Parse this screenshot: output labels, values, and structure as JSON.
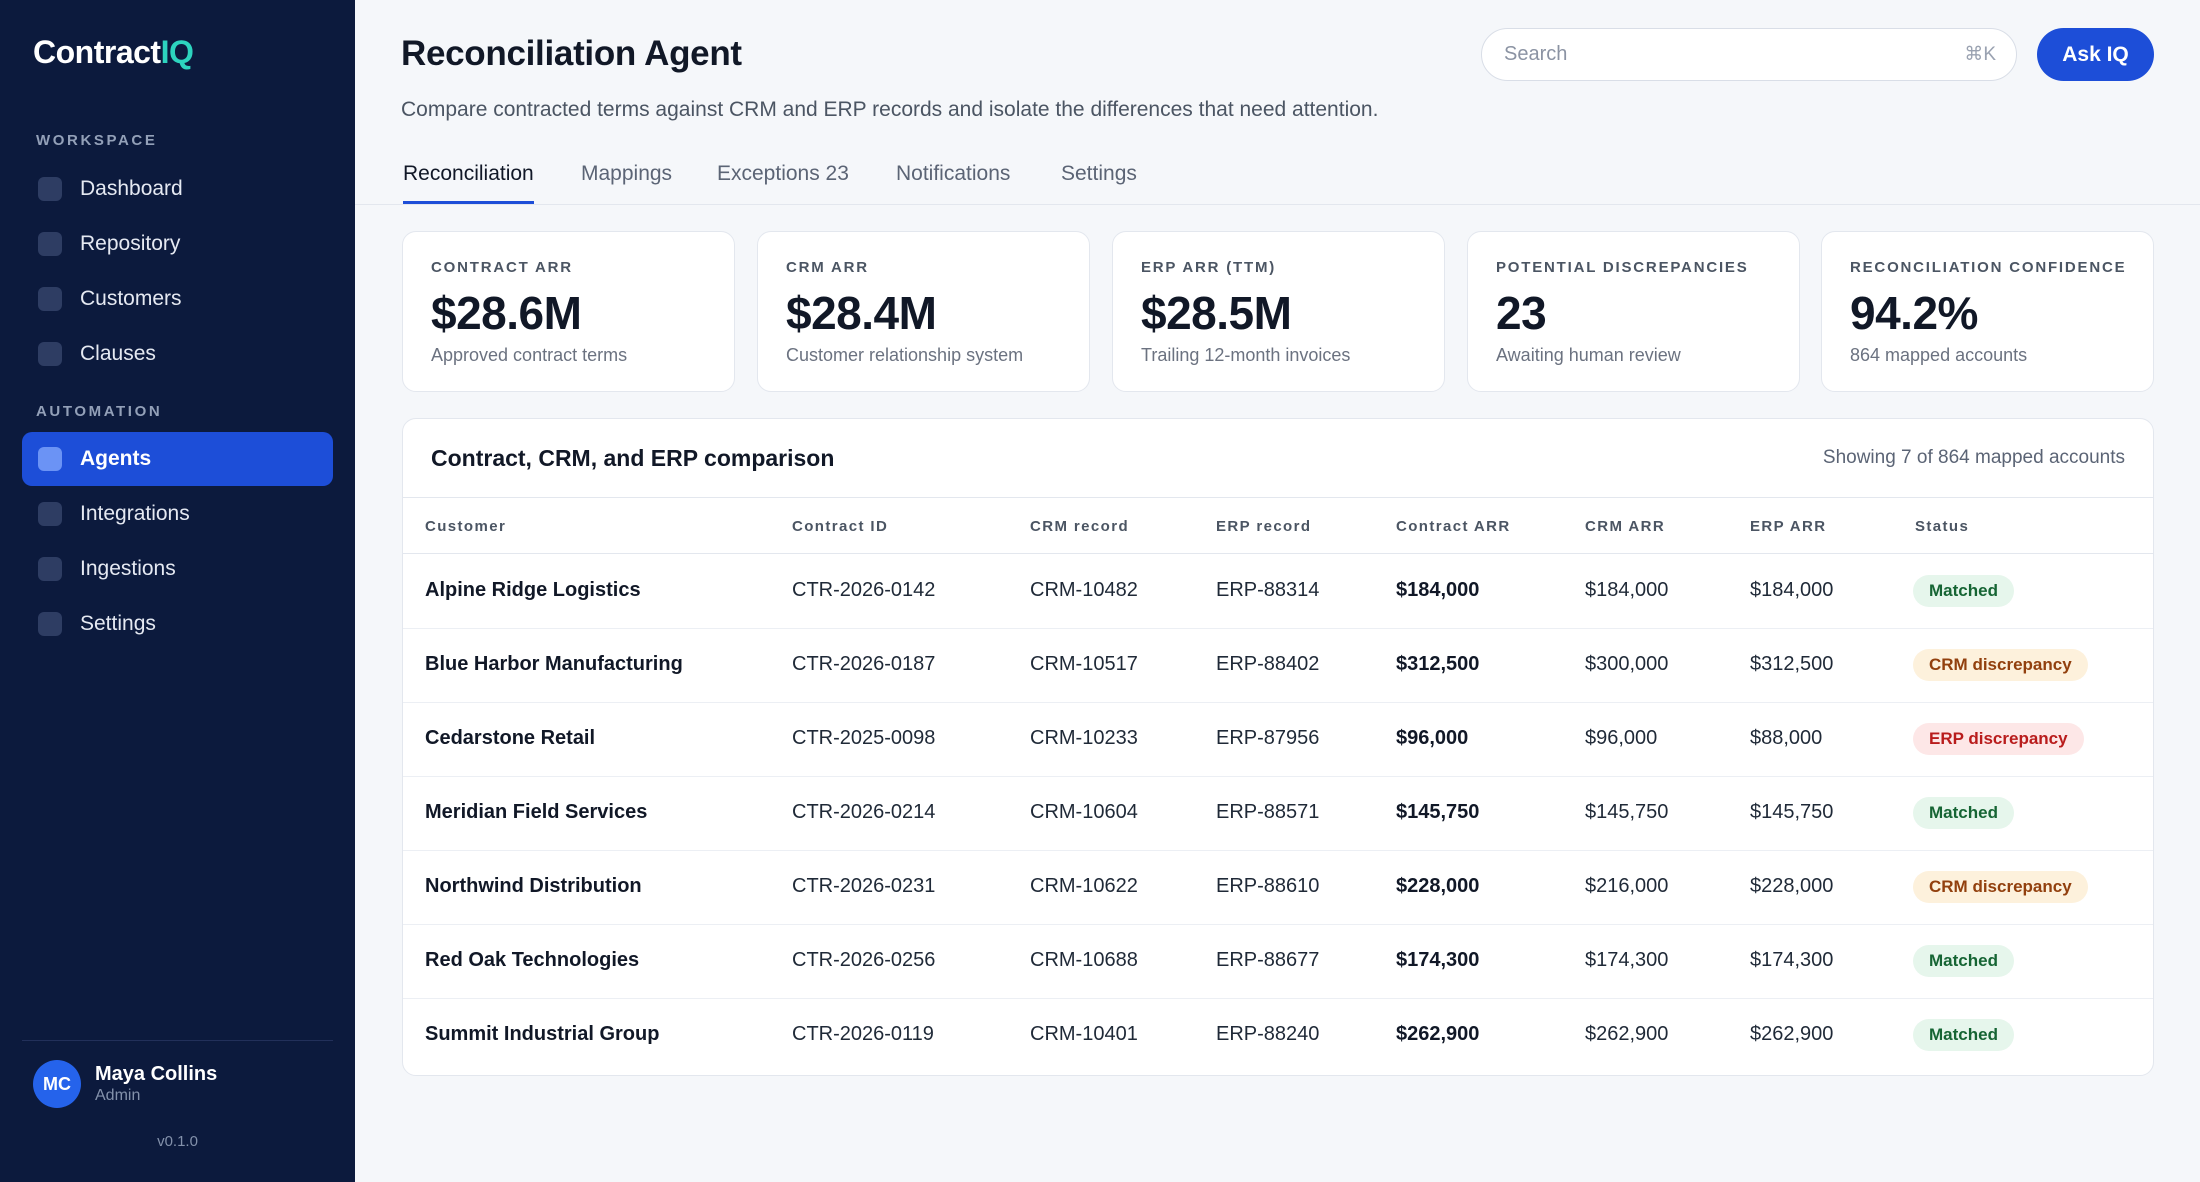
{
  "brand": {
    "name": "Contract",
    "accent": "IQ"
  },
  "sidebar": {
    "sections": [
      {
        "label": "WORKSPACE",
        "items": [
          "Dashboard",
          "Repository",
          "Customers",
          "Clauses"
        ]
      },
      {
        "label": "AUTOMATION",
        "items": [
          "Agents",
          "Integrations",
          "Ingestions",
          "Settings"
        ]
      }
    ],
    "active_item": "Agents",
    "user": {
      "initials": "MC",
      "name": "Maya Collins",
      "role": "Admin"
    },
    "version": "v0.1.0"
  },
  "header": {
    "title": "Reconciliation Agent",
    "subtitle": "Compare contracted terms against CRM and ERP records and isolate the differences that need attention.",
    "search_placeholder": "Search",
    "search_shortcut": "⌘K",
    "ask_button": "Ask IQ"
  },
  "tabs": [
    {
      "label": "Reconciliation",
      "active": true
    },
    {
      "label": "Mappings",
      "active": false
    },
    {
      "label": "Exceptions 23",
      "active": false
    },
    {
      "label": "Notifications",
      "active": false
    },
    {
      "label": "Settings",
      "active": false
    }
  ],
  "kpis": [
    {
      "label": "CONTRACT ARR",
      "value": "$28.6M",
      "sub": "Approved contract terms"
    },
    {
      "label": "CRM ARR",
      "value": "$28.4M",
      "sub": "Customer relationship system"
    },
    {
      "label": "ERP ARR (TTM)",
      "value": "$28.5M",
      "sub": "Trailing 12-month invoices"
    },
    {
      "label": "POTENTIAL DISCREPANCIES",
      "value": "23",
      "sub": "Awaiting human review"
    },
    {
      "label": "RECONCILIATION CONFIDENCE",
      "value": "94.2%",
      "sub": "864 mapped accounts"
    }
  ],
  "table": {
    "title": "Contract, CRM, and ERP comparison",
    "count": "Showing 7 of 864 mapped accounts",
    "columns": [
      "Customer",
      "Contract ID",
      "CRM record",
      "ERP record",
      "Contract ARR",
      "CRM ARR",
      "ERP ARR",
      "Status"
    ],
    "rows": [
      {
        "customer": "Alpine Ridge Logistics",
        "contract_id": "CTR-2026-0142",
        "crm": "CRM-10482",
        "erp": "ERP-88314",
        "contract_arr": "$184,000",
        "crm_arr": "$184,000",
        "erp_arr": "$184,000",
        "status": "Matched",
        "status_type": "matched"
      },
      {
        "customer": "Blue Harbor Manufacturing",
        "contract_id": "CTR-2026-0187",
        "crm": "CRM-10517",
        "erp": "ERP-88402",
        "contract_arr": "$312,500",
        "crm_arr": "$300,000",
        "erp_arr": "$312,500",
        "status": "CRM discrepancy",
        "status_type": "crm"
      },
      {
        "customer": "Cedarstone Retail",
        "contract_id": "CTR-2025-0098",
        "crm": "CRM-10233",
        "erp": "ERP-87956",
        "contract_arr": "$96,000",
        "crm_arr": "$96,000",
        "erp_arr": "$88,000",
        "status": "ERP discrepancy",
        "status_type": "erp"
      },
      {
        "customer": "Meridian Field Services",
        "contract_id": "CTR-2026-0214",
        "crm": "CRM-10604",
        "erp": "ERP-88571",
        "contract_arr": "$145,750",
        "crm_arr": "$145,750",
        "erp_arr": "$145,750",
        "status": "Matched",
        "status_type": "matched"
      },
      {
        "customer": "Northwind Distribution",
        "contract_id": "CTR-2026-0231",
        "crm": "CRM-10622",
        "erp": "ERP-88610",
        "contract_arr": "$228,000",
        "crm_arr": "$216,000",
        "erp_arr": "$228,000",
        "status": "CRM discrepancy",
        "status_type": "crm"
      },
      {
        "customer": "Red Oak Technologies",
        "contract_id": "CTR-2026-0256",
        "crm": "CRM-10688",
        "erp": "ERP-88677",
        "contract_arr": "$174,300",
        "crm_arr": "$174,300",
        "erp_arr": "$174,300",
        "status": "Matched",
        "status_type": "matched"
      },
      {
        "customer": "Summit Industrial Group",
        "contract_id": "CTR-2026-0119",
        "crm": "CRM-10401",
        "erp": "ERP-88240",
        "contract_arr": "$262,900",
        "crm_arr": "$262,900",
        "erp_arr": "$262,900",
        "status": "Matched",
        "status_type": "matched"
      }
    ]
  },
  "colors": {
    "sidebar_bg": "#0c1a3d",
    "accent": "#1d4ed8",
    "brand_accent": "#2dd4bf"
  }
}
